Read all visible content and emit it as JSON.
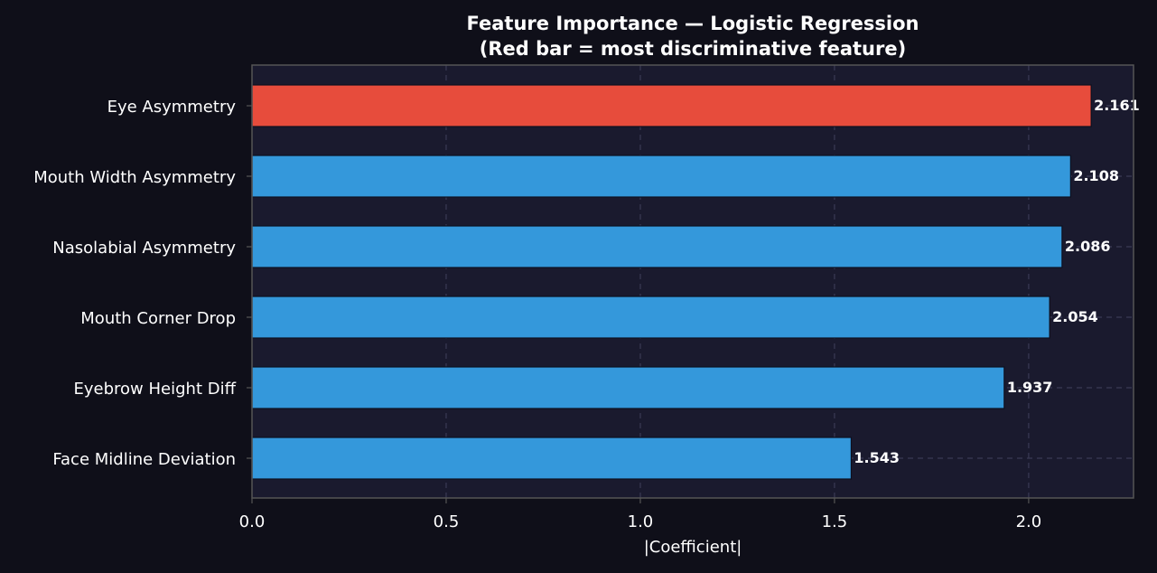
{
  "chart_data": {
    "type": "bar",
    "orientation": "horizontal",
    "title": "Feature Importance — Logistic Regression",
    "subtitle": "(Red bar = most discriminative feature)",
    "xlabel": "|Coefficient|",
    "ylabel": "",
    "xlim": [
      0,
      2.27
    ],
    "xticks": [
      0.0,
      0.5,
      1.0,
      1.5,
      2.0
    ],
    "xtick_labels": [
      "0.0",
      "0.5",
      "1.0",
      "1.5",
      "2.0"
    ],
    "grid": true,
    "categories": [
      "Eye Asymmetry",
      "Mouth Width Asymmetry",
      "Nasolabial Asymmetry",
      "Mouth Corner Drop",
      "Eyebrow Height Diff",
      "Face Midline Deviation"
    ],
    "values": [
      2.161,
      2.108,
      2.086,
      2.054,
      1.937,
      1.543
    ],
    "value_labels": [
      "2.161",
      "2.108",
      "2.086",
      "2.054",
      "1.937",
      "1.543"
    ],
    "bar_colors": [
      "#e74c3c",
      "#3498db",
      "#3498db",
      "#3498db",
      "#3498db",
      "#3498db"
    ]
  },
  "colors": {
    "page_background": "#0f0f19",
    "plot_background": "#1a1a2e",
    "highlight_bar": "#e74c3c",
    "default_bar": "#3498db",
    "text": "#ffffff",
    "grid": "#3a3a55",
    "axis_frame": "#555555"
  }
}
